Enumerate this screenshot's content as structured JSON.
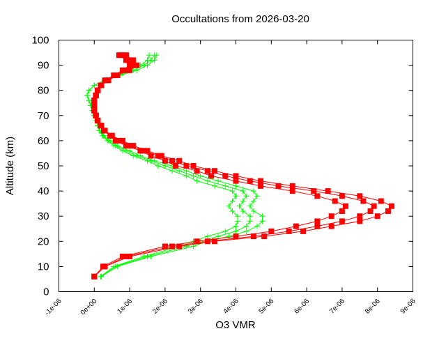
{
  "chart_data": {
    "type": "line",
    "title": "Occultations from 2026-03-20",
    "xlabel": "O3 VMR",
    "ylabel": "Altitude (km)",
    "xlim": [
      -1e-06,
      9e-06
    ],
    "ylim": [
      0,
      100
    ],
    "xticks": [
      "-1e-06",
      "0e+00",
      "1e-06",
      "2e-06",
      "3e-06",
      "4e-06",
      "5e-06",
      "6e-06",
      "7e-06",
      "8e-06",
      "9e-06"
    ],
    "yticks": [
      "0",
      "10",
      "20",
      "30",
      "40",
      "50",
      "60",
      "70",
      "80",
      "90",
      "100"
    ],
    "grid": false,
    "x_unit_scale": 1e-06,
    "altitude": [
      6,
      10,
      14,
      18,
      20,
      22,
      24,
      26,
      28,
      30,
      32,
      34,
      36,
      38,
      40,
      42,
      44,
      46,
      48,
      50,
      52,
      54,
      56,
      58,
      60,
      62,
      64,
      66,
      68,
      70,
      72,
      74,
      76,
      78,
      80,
      82,
      84,
      86,
      88,
      90,
      92,
      94
    ],
    "series": [
      {
        "color": "#00ff00",
        "marker": "plus",
        "profiles": [
          [
            0.2,
            0.6,
            1.5,
            2.6,
            3.0,
            3.5,
            4.0,
            4.3,
            4.4,
            4.4,
            4.2,
            4.1,
            4.2,
            4.3,
            4.2,
            3.7,
            3.2,
            2.8,
            2.4,
            2.0,
            1.6,
            1.2,
            0.9,
            0.6,
            0.4,
            0.25,
            0.15,
            0.1,
            0.05,
            0,
            -0.05,
            -0.1,
            -0.15,
            -0.2,
            -0.15,
            0,
            0.3,
            0.7,
            1.1,
            1.4,
            1.6,
            1.7
          ],
          [
            0.2,
            0.65,
            1.6,
            2.8,
            3.2,
            3.8,
            4.3,
            4.6,
            4.75,
            4.75,
            4.5,
            4.4,
            4.5,
            4.6,
            4.5,
            4.0,
            3.5,
            3.0,
            2.6,
            2.2,
            1.7,
            1.3,
            1.0,
            0.65,
            0.45,
            0.27,
            0.16,
            0.1,
            0.05,
            0,
            -0.05,
            -0.1,
            -0.15,
            -0.2,
            -0.15,
            0,
            0.3,
            0.75,
            1.2,
            1.5,
            1.7,
            1.75
          ],
          [
            0.18,
            0.55,
            1.4,
            2.4,
            2.8,
            3.2,
            3.7,
            4.0,
            4.05,
            4.05,
            3.9,
            3.8,
            3.9,
            4.0,
            3.9,
            3.4,
            2.9,
            2.6,
            2.2,
            1.8,
            1.5,
            1.1,
            0.8,
            0.55,
            0.37,
            0.23,
            0.14,
            0.09,
            0.05,
            0,
            -0.05,
            -0.1,
            -0.15,
            -0.2,
            -0.15,
            0,
            0.28,
            0.65,
            1.0,
            1.3,
            1.5,
            1.55
          ]
        ]
      },
      {
        "color": "#ff0000",
        "marker": "square",
        "profiles": [
          [
            0.0,
            0.3,
            0.9,
            2.2,
            3.2,
            4.5,
            5.5,
            6.3,
            7.0,
            7.5,
            7.8,
            7.9,
            7.6,
            7.0,
            6.2,
            5.2,
            4.4,
            3.7,
            3.2,
            2.6,
            2.2,
            1.8,
            1.4,
            1.0,
            0.7,
            0.5,
            0.3,
            0.2,
            0.1,
            0.05,
            0,
            0,
            0,
            0.05,
            0.1,
            0.2,
            0.35,
            0.6,
            0.9,
            1.1,
            1.0,
            0.8
          ],
          [
            0.0,
            0.3,
            1.0,
            2.4,
            3.4,
            4.8,
            5.9,
            6.7,
            7.5,
            8.0,
            8.3,
            8.4,
            8.1,
            7.5,
            6.6,
            5.6,
            4.7,
            4.0,
            3.4,
            2.8,
            2.4,
            1.9,
            1.5,
            1.1,
            0.8,
            0.5,
            0.3,
            0.2,
            0.1,
            0.05,
            0,
            0,
            0,
            0.05,
            0.1,
            0.2,
            0.4,
            0.65,
            1.0,
            1.2,
            1.1,
            0.9
          ],
          [
            0.0,
            0.25,
            0.8,
            2.0,
            2.9,
            4.0,
            5.0,
            5.7,
            6.3,
            6.7,
            7.0,
            7.1,
            6.8,
            6.3,
            5.6,
            4.7,
            4.0,
            3.3,
            2.9,
            2.3,
            2.0,
            1.6,
            1.3,
            0.9,
            0.6,
            0.45,
            0.27,
            0.18,
            0.09,
            0.04,
            0,
            0,
            0,
            0.04,
            0.09,
            0.18,
            0.3,
            0.55,
            0.8,
            1.0,
            0.9,
            0.7
          ]
        ]
      }
    ]
  }
}
